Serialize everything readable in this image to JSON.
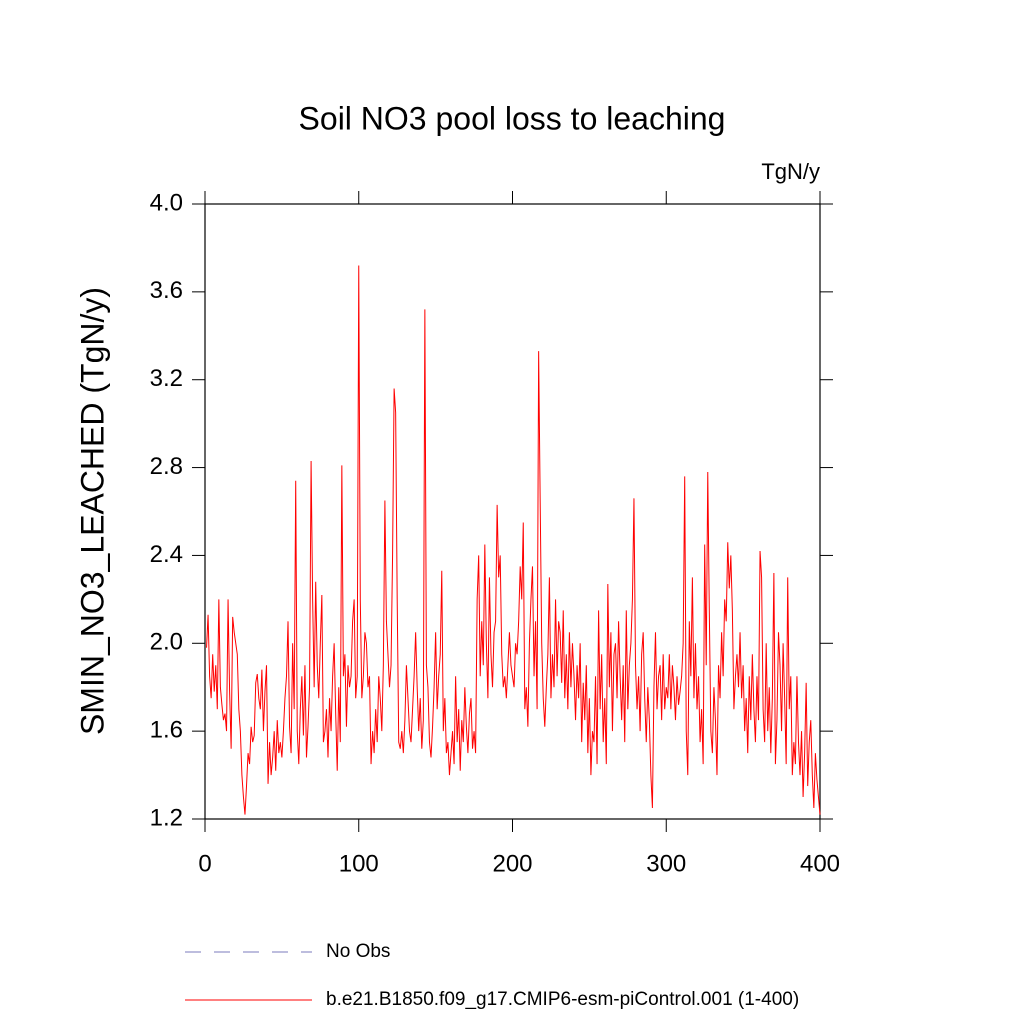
{
  "chart_data": {
    "type": "line",
    "title": "Soil NO3 pool loss to leaching",
    "units": "TgN/y",
    "y_label": "SMIN_NO3_LEACHED  (TgN/y)",
    "xlim": [
      0,
      400
    ],
    "xticks": [
      0,
      100,
      200,
      300,
      400
    ],
    "ylim": [
      1.2,
      4.0
    ],
    "yticks": [
      {
        "value": 1.2,
        "label": "1.2"
      },
      {
        "value": 1.6,
        "label": "1.6"
      },
      {
        "value": 2.0,
        "label": "2.0"
      },
      {
        "value": 2.4,
        "label": "2.4"
      },
      {
        "value": 2.8,
        "label": "2.8"
      },
      {
        "value": 3.2,
        "label": "3.2"
      },
      {
        "value": 3.6,
        "label": "3.6"
      },
      {
        "value": 4.0,
        "label": "4.0"
      }
    ],
    "reference_lines": [
      {
        "name": "No Obs",
        "color": "#7b7bbd",
        "dashed": true
      }
    ],
    "x": [
      1,
      2,
      3,
      4,
      5,
      6,
      7,
      8,
      9,
      10,
      11,
      12,
      13,
      14,
      15,
      16,
      17,
      18,
      19,
      20,
      21,
      22,
      23,
      24,
      25,
      26,
      27,
      28,
      29,
      30,
      31,
      32,
      33,
      34,
      35,
      36,
      37,
      38,
      39,
      40,
      41,
      42,
      43,
      44,
      45,
      46,
      47,
      48,
      49,
      50,
      51,
      52,
      53,
      54,
      55,
      56,
      57,
      58,
      59,
      60,
      61,
      62,
      63,
      64,
      65,
      66,
      67,
      68,
      69,
      70,
      71,
      72,
      73,
      74,
      75,
      76,
      77,
      78,
      79,
      80,
      81,
      82,
      83,
      84,
      85,
      86,
      87,
      88,
      89,
      90,
      91,
      92,
      93,
      94,
      95,
      96,
      97,
      98,
      99,
      100,
      101,
      102,
      103,
      104,
      105,
      106,
      107,
      108,
      109,
      110,
      111,
      112,
      113,
      114,
      115,
      116,
      117,
      118,
      119,
      120,
      121,
      122,
      123,
      124,
      125,
      126,
      127,
      128,
      129,
      130,
      131,
      132,
      133,
      134,
      135,
      136,
      137,
      138,
      139,
      140,
      141,
      142,
      143,
      144,
      145,
      146,
      147,
      148,
      149,
      150,
      151,
      152,
      153,
      154,
      155,
      156,
      157,
      158,
      159,
      160,
      161,
      162,
      163,
      164,
      165,
      166,
      167,
      168,
      169,
      170,
      171,
      172,
      173,
      174,
      175,
      176,
      177,
      178,
      179,
      180,
      181,
      182,
      183,
      184,
      185,
      186,
      187,
      188,
      189,
      190,
      191,
      192,
      193,
      194,
      195,
      196,
      197,
      198,
      199,
      200,
      201,
      202,
      203,
      204,
      205,
      206,
      207,
      208,
      209,
      210,
      211,
      212,
      213,
      214,
      215,
      216,
      217,
      218,
      219,
      220,
      221,
      222,
      223,
      224,
      225,
      226,
      227,
      228,
      229,
      230,
      231,
      232,
      233,
      234,
      235,
      236,
      237,
      238,
      239,
      240,
      241,
      242,
      243,
      244,
      245,
      246,
      247,
      248,
      249,
      250,
      251,
      252,
      253,
      254,
      255,
      256,
      257,
      258,
      259,
      260,
      261,
      262,
      263,
      264,
      265,
      266,
      267,
      268,
      269,
      270,
      271,
      272,
      273,
      274,
      275,
      276,
      277,
      278,
      279,
      280,
      281,
      282,
      283,
      284,
      285,
      286,
      287,
      288,
      289,
      290,
      291,
      292,
      293,
      294,
      295,
      296,
      297,
      298,
      299,
      300,
      301,
      302,
      303,
      304,
      305,
      306,
      307,
      308,
      309,
      310,
      311,
      312,
      313,
      314,
      315,
      316,
      317,
      318,
      319,
      320,
      321,
      322,
      323,
      324,
      325,
      326,
      327,
      328,
      329,
      330,
      331,
      332,
      333,
      334,
      335,
      336,
      337,
      338,
      339,
      340,
      341,
      342,
      343,
      344,
      345,
      346,
      347,
      348,
      349,
      350,
      351,
      352,
      353,
      354,
      355,
      356,
      357,
      358,
      359,
      360,
      361,
      362,
      363,
      364,
      365,
      366,
      367,
      368,
      369,
      370,
      371,
      372,
      373,
      374,
      375,
      376,
      377,
      378,
      379,
      380,
      381,
      382,
      383,
      384,
      385,
      386,
      387,
      388,
      389,
      390,
      391,
      392,
      393,
      394,
      395,
      396,
      397,
      398,
      399,
      400
    ],
    "series": [
      {
        "name": "b.e21.B1850.f09_g17.CMIP6-esm-piControl.001 (1-400)",
        "color": "#ff0000",
        "values": [
          1.98,
          2.13,
          1.85,
          1.75,
          1.95,
          1.78,
          1.9,
          1.7,
          2.2,
          1.8,
          1.72,
          1.65,
          1.68,
          1.6,
          2.2,
          1.78,
          1.52,
          2.12,
          2.05,
          2.0,
          1.95,
          1.7,
          1.6,
          1.4,
          1.3,
          1.22,
          1.35,
          1.5,
          1.45,
          1.62,
          1.55,
          1.58,
          1.82,
          1.86,
          1.75,
          1.7,
          1.88,
          1.6,
          1.78,
          1.9,
          1.36,
          1.55,
          1.4,
          1.48,
          1.6,
          1.42,
          1.65,
          1.5,
          1.55,
          1.48,
          1.6,
          1.75,
          1.85,
          2.1,
          1.62,
          1.5,
          2.0,
          1.7,
          2.74,
          1.6,
          1.45,
          1.7,
          1.85,
          1.58,
          1.9,
          1.48,
          1.62,
          1.8,
          2.83,
          2.2,
          1.8,
          2.28,
          1.9,
          1.75,
          2.0,
          2.22,
          1.55,
          1.6,
          1.7,
          1.48,
          1.75,
          1.6,
          1.85,
          2.0,
          1.68,
          1.42,
          1.8,
          1.55,
          2.81,
          1.85,
          1.95,
          1.62,
          1.9,
          1.8,
          1.85,
          2.1,
          2.2,
          1.75,
          1.85,
          3.72,
          2.2,
          1.75,
          1.85,
          2.05,
          2.0,
          1.8,
          1.85,
          1.45,
          1.6,
          1.5,
          1.7,
          1.55,
          1.85,
          1.75,
          1.6,
          1.9,
          2.65,
          2.1,
          1.95,
          1.8,
          1.9,
          2.4,
          3.16,
          3.05,
          2.2,
          1.55,
          1.52,
          1.6,
          1.5,
          1.65,
          1.9,
          1.75,
          1.6,
          1.55,
          1.7,
          1.85,
          2.05,
          1.8,
          1.6,
          1.75,
          1.52,
          1.65,
          3.52,
          1.9,
          1.8,
          1.55,
          1.48,
          1.62,
          1.8,
          2.05,
          1.7,
          1.85,
          1.95,
          2.33,
          1.6,
          1.75,
          1.5,
          1.55,
          1.4,
          1.5,
          1.6,
          1.45,
          1.85,
          1.55,
          1.7,
          1.42,
          1.65,
          1.55,
          1.8,
          1.62,
          1.5,
          1.68,
          1.75,
          1.52,
          1.6,
          1.5,
          2.2,
          2.4,
          1.85,
          2.1,
          1.9,
          2.45,
          2.0,
          1.75,
          2.3,
          1.95,
          1.8,
          2.05,
          2.1,
          2.63,
          2.3,
          2.4,
          1.95,
          1.8,
          1.85,
          1.75,
          1.9,
          2.05,
          1.9,
          1.85,
          1.8,
          2.0,
          1.95,
          2.1,
          2.35,
          2.2,
          2.55,
          1.7,
          1.8,
          1.62,
          2.0,
          2.2,
          2.35,
          1.85,
          2.1,
          1.7,
          3.33,
          2.65,
          2.0,
          1.75,
          1.62,
          1.8,
          1.95,
          2.3,
          1.75,
          1.95,
          1.8,
          2.2,
          1.85,
          2.1,
          2.05,
          1.82,
          2.15,
          1.75,
          1.95,
          1.7,
          2.05,
          1.8,
          2.0,
          1.85,
          1.65,
          1.9,
          1.75,
          2.0,
          1.55,
          1.82,
          1.65,
          1.9,
          1.5,
          1.75,
          1.4,
          1.6,
          1.55,
          1.85,
          1.45,
          2.15,
          1.7,
          1.95,
          1.55,
          1.75,
          1.45,
          2.27,
          1.8,
          2.05,
          1.6,
          1.95,
          2.0,
          1.75,
          2.1,
          1.85,
          1.65,
          1.9,
          1.55,
          2.15,
          1.7,
          1.9,
          2.0,
          2.2,
          2.66,
          1.9,
          1.7,
          1.85,
          1.6,
          1.95,
          2.05,
          1.75,
          1.55,
          1.8,
          1.65,
          1.4,
          1.25,
          1.8,
          2.05,
          1.7,
          1.85,
          1.9,
          1.65,
          1.95,
          1.7,
          1.8,
          1.75,
          1.95,
          1.7,
          1.9,
          1.8,
          1.65,
          1.85,
          1.72,
          1.78,
          1.85,
          2.0,
          2.76,
          1.6,
          1.4,
          2.1,
          1.85,
          2.3,
          1.75,
          2.0,
          1.7,
          1.85,
          1.55,
          1.7,
          1.45,
          2.45,
          1.9,
          2.78,
          2.15,
          1.6,
          1.5,
          1.8,
          1.65,
          1.4,
          1.9,
          1.75,
          2.05,
          1.85,
          2.2,
          2.1,
          2.46,
          2.25,
          2.4,
          2.15,
          1.7,
          1.85,
          1.95,
          1.8,
          2.05,
          1.75,
          1.9,
          1.6,
          1.75,
          1.5,
          1.85,
          1.65,
          1.95,
          1.7,
          1.55,
          1.85,
          1.65,
          2.42,
          2.3,
          1.7,
          1.55,
          2.0,
          1.6,
          1.8,
          1.5,
          1.75,
          2.32,
          1.45,
          1.65,
          2.05,
          1.9,
          1.6,
          2.0,
          1.75,
          1.45,
          2.3,
          1.7,
          1.85,
          1.4,
          1.55,
          1.45,
          1.85,
          1.55,
          1.4,
          1.6,
          1.3,
          1.5,
          1.82,
          1.35,
          1.55,
          1.65,
          1.4,
          1.25,
          1.5,
          1.38,
          1.3,
          1.22
        ]
      }
    ]
  }
}
